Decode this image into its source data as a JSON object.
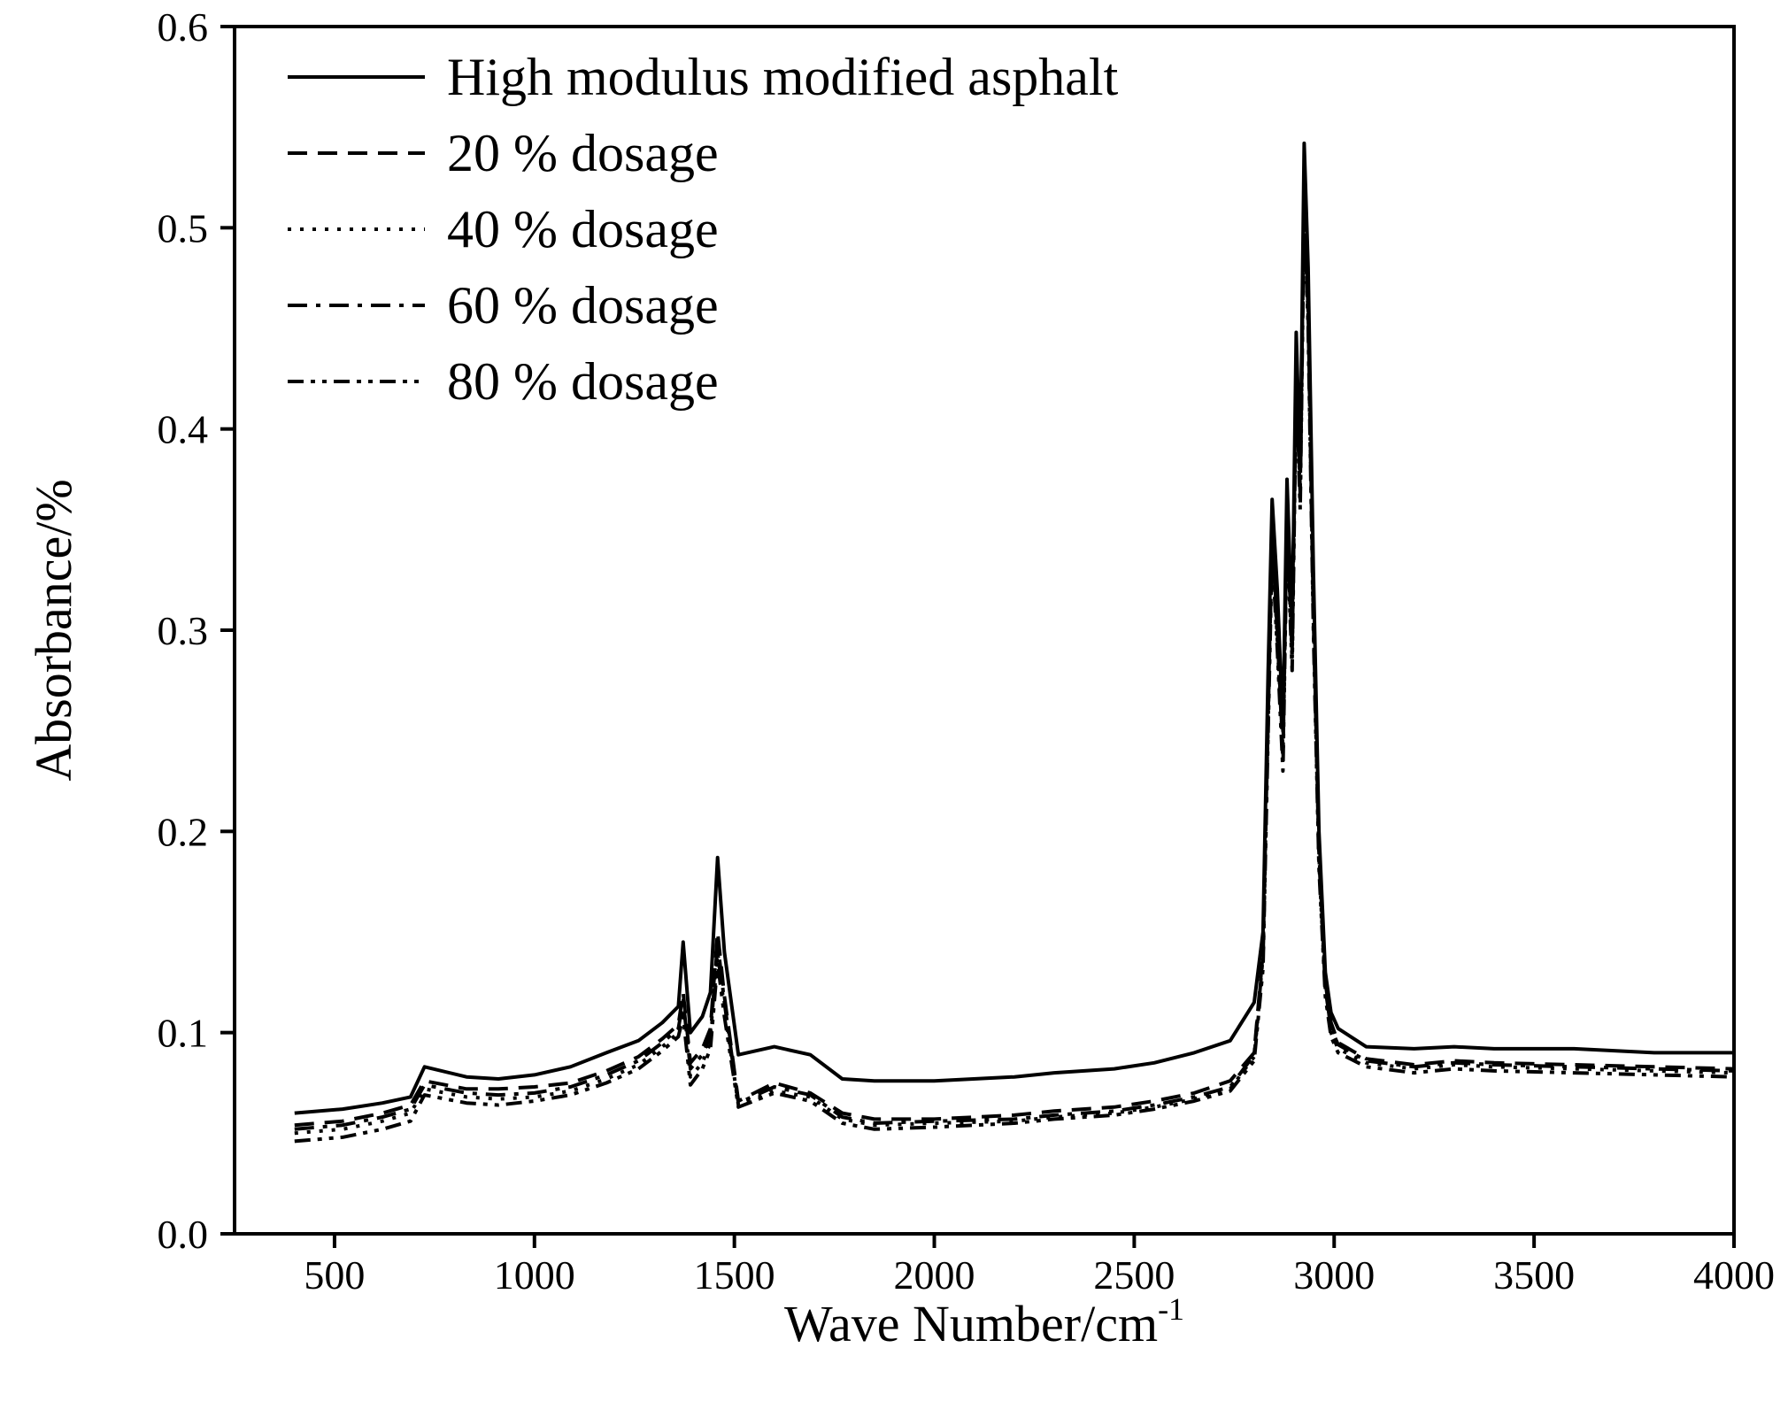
{
  "chart_data": {
    "type": "line",
    "title": "",
    "xlabel": "Wave Number/cm",
    "xlabel_superscript": "-1",
    "ylabel": "Absorbance/%",
    "xlim": [
      250,
      4000
    ],
    "ylim": [
      0.0,
      0.6
    ],
    "x_ticks": [
      500,
      1000,
      1500,
      2000,
      2500,
      3000,
      3500,
      4000
    ],
    "x_tick_labels": [
      "500",
      "1000",
      "1500",
      "2000",
      "2500",
      "3000",
      "3500",
      "4000"
    ],
    "y_ticks": [
      0.0,
      0.1,
      0.2,
      0.3,
      0.4,
      0.5,
      0.6
    ],
    "y_tick_labels": [
      "0.0",
      "0.1",
      "0.2",
      "0.3",
      "0.4",
      "0.5",
      "0.6"
    ],
    "grid": false,
    "legend_position": "top-left",
    "series": [
      {
        "name": "High modulus modified asphalt",
        "dash": "solid",
        "x": [
          400,
          520,
          620,
          690,
          725,
          830,
          910,
          1000,
          1090,
          1180,
          1260,
          1320,
          1360,
          1372,
          1390,
          1420,
          1440,
          1458,
          1475,
          1510,
          1600,
          1690,
          1770,
          1850,
          2000,
          2200,
          2300,
          2450,
          2550,
          2650,
          2740,
          2800,
          2822,
          2835,
          2845,
          2858,
          2872,
          2882,
          2895,
          2905,
          2915,
          2925,
          2935,
          2948,
          2962,
          2978,
          2992,
          3010,
          3080,
          3200,
          3300,
          3400,
          3600,
          3800,
          4000
        ],
        "y": [
          0.06,
          0.062,
          0.065,
          0.068,
          0.083,
          0.078,
          0.077,
          0.079,
          0.083,
          0.09,
          0.096,
          0.105,
          0.113,
          0.145,
          0.1,
          0.108,
          0.12,
          0.187,
          0.14,
          0.089,
          0.093,
          0.089,
          0.077,
          0.076,
          0.076,
          0.078,
          0.08,
          0.082,
          0.085,
          0.09,
          0.096,
          0.115,
          0.15,
          0.28,
          0.365,
          0.32,
          0.25,
          0.375,
          0.3,
          0.448,
          0.38,
          0.542,
          0.48,
          0.33,
          0.2,
          0.13,
          0.11,
          0.102,
          0.093,
          0.092,
          0.093,
          0.092,
          0.092,
          0.09,
          0.09
        ]
      },
      {
        "name": "20 % dosage",
        "dash": "dashed",
        "x": [
          400,
          520,
          620,
          690,
          725,
          830,
          910,
          1000,
          1090,
          1180,
          1260,
          1320,
          1360,
          1372,
          1390,
          1420,
          1440,
          1458,
          1475,
          1510,
          1600,
          1690,
          1770,
          1850,
          2000,
          2200,
          2300,
          2450,
          2550,
          2650,
          2740,
          2800,
          2822,
          2835,
          2845,
          2858,
          2872,
          2882,
          2895,
          2905,
          2915,
          2925,
          2935,
          2948,
          2962,
          2978,
          2992,
          3010,
          3080,
          3200,
          3300,
          3400,
          3600,
          3800,
          4000
        ],
        "y": [
          0.054,
          0.056,
          0.06,
          0.064,
          0.076,
          0.072,
          0.072,
          0.073,
          0.075,
          0.081,
          0.088,
          0.097,
          0.104,
          0.12,
          0.085,
          0.092,
          0.102,
          0.15,
          0.118,
          0.066,
          0.075,
          0.07,
          0.06,
          0.057,
          0.057,
          0.059,
          0.061,
          0.063,
          0.066,
          0.07,
          0.076,
          0.09,
          0.14,
          0.26,
          0.35,
          0.3,
          0.24,
          0.36,
          0.29,
          0.43,
          0.37,
          0.52,
          0.46,
          0.31,
          0.19,
          0.125,
          0.105,
          0.095,
          0.087,
          0.084,
          0.086,
          0.085,
          0.084,
          0.083,
          0.082
        ]
      },
      {
        "name": "40 % dosage",
        "dash": "dotted",
        "x": [
          400,
          520,
          620,
          690,
          725,
          830,
          910,
          1000,
          1090,
          1180,
          1260,
          1320,
          1360,
          1372,
          1390,
          1420,
          1440,
          1458,
          1475,
          1510,
          1600,
          1690,
          1770,
          1850,
          2000,
          2200,
          2300,
          2450,
          2550,
          2650,
          2740,
          2800,
          2822,
          2835,
          2845,
          2858,
          2872,
          2882,
          2895,
          2905,
          2915,
          2925,
          2935,
          2948,
          2962,
          2978,
          2992,
          3010,
          3080,
          3200,
          3300,
          3400,
          3600,
          3800,
          4000
        ],
        "y": [
          0.05,
          0.052,
          0.056,
          0.06,
          0.072,
          0.068,
          0.067,
          0.068,
          0.071,
          0.077,
          0.084,
          0.093,
          0.1,
          0.112,
          0.078,
          0.085,
          0.095,
          0.14,
          0.112,
          0.064,
          0.071,
          0.068,
          0.057,
          0.054,
          0.055,
          0.056,
          0.058,
          0.06,
          0.063,
          0.067,
          0.072,
          0.088,
          0.135,
          0.255,
          0.345,
          0.295,
          0.235,
          0.355,
          0.285,
          0.425,
          0.365,
          0.515,
          0.455,
          0.305,
          0.185,
          0.12,
          0.1,
          0.092,
          0.085,
          0.082,
          0.084,
          0.083,
          0.082,
          0.081,
          0.08
        ]
      },
      {
        "name": "60 % dosage",
        "dash": "dash-dot",
        "x": [
          400,
          520,
          620,
          690,
          725,
          830,
          910,
          1000,
          1090,
          1180,
          1260,
          1320,
          1360,
          1372,
          1390,
          1420,
          1440,
          1458,
          1475,
          1510,
          1600,
          1690,
          1770,
          1850,
          2000,
          2200,
          2300,
          2450,
          2550,
          2650,
          2740,
          2800,
          2822,
          2835,
          2845,
          2858,
          2872,
          2882,
          2895,
          2905,
          2915,
          2925,
          2935,
          2948,
          2962,
          2978,
          2992,
          3010,
          3080,
          3200,
          3300,
          3400,
          3600,
          3800,
          4000
        ],
        "y": [
          0.052,
          0.054,
          0.058,
          0.062,
          0.074,
          0.07,
          0.069,
          0.07,
          0.073,
          0.079,
          0.086,
          0.095,
          0.102,
          0.116,
          0.082,
          0.089,
          0.098,
          0.145,
          0.115,
          0.065,
          0.073,
          0.069,
          0.058,
          0.055,
          0.056,
          0.057,
          0.059,
          0.061,
          0.064,
          0.068,
          0.073,
          0.089,
          0.138,
          0.258,
          0.348,
          0.298,
          0.238,
          0.358,
          0.288,
          0.428,
          0.368,
          0.518,
          0.458,
          0.308,
          0.188,
          0.122,
          0.102,
          0.094,
          0.086,
          0.083,
          0.085,
          0.084,
          0.083,
          0.082,
          0.081
        ]
      },
      {
        "name": "80 % dosage",
        "dash": "dash-dot-dot",
        "x": [
          400,
          520,
          620,
          690,
          725,
          830,
          910,
          1000,
          1090,
          1180,
          1260,
          1320,
          1360,
          1372,
          1390,
          1420,
          1440,
          1458,
          1475,
          1510,
          1600,
          1690,
          1770,
          1850,
          2000,
          2200,
          2300,
          2450,
          2550,
          2650,
          2740,
          2800,
          2822,
          2835,
          2845,
          2858,
          2872,
          2882,
          2895,
          2905,
          2915,
          2925,
          2935,
          2948,
          2962,
          2978,
          2992,
          3010,
          3080,
          3200,
          3300,
          3400,
          3600,
          3800,
          4000
        ],
        "y": [
          0.046,
          0.048,
          0.052,
          0.056,
          0.069,
          0.065,
          0.064,
          0.066,
          0.069,
          0.075,
          0.082,
          0.091,
          0.098,
          0.108,
          0.074,
          0.082,
          0.092,
          0.135,
          0.108,
          0.063,
          0.07,
          0.066,
          0.055,
          0.052,
          0.053,
          0.055,
          0.057,
          0.059,
          0.062,
          0.066,
          0.071,
          0.086,
          0.132,
          0.25,
          0.34,
          0.29,
          0.23,
          0.35,
          0.28,
          0.42,
          0.36,
          0.51,
          0.45,
          0.3,
          0.182,
          0.118,
          0.098,
          0.09,
          0.083,
          0.08,
          0.082,
          0.081,
          0.08,
          0.079,
          0.078
        ]
      }
    ]
  }
}
